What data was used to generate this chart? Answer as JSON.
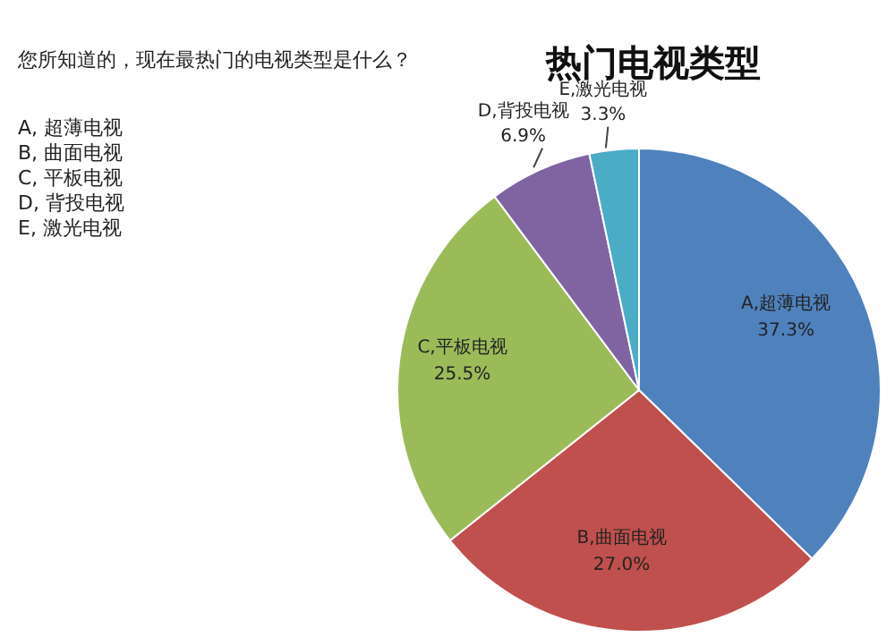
{
  "chart_data": {
    "type": "pie",
    "title": "热门电视类型",
    "annotations": [
      "您所知道的，现在最热门的电视类型是什么？",
      "A, 超薄电视",
      "B, 曲面电视",
      "C, 平板电视",
      "D, 背投电视",
      "E, 激光电视"
    ],
    "categories": [
      "A,超薄电视",
      "B,曲面电视",
      "C,平板电视",
      "D,背投电视",
      "E,激光电视"
    ],
    "values": [
      37.3,
      27.0,
      25.5,
      6.9,
      3.3
    ],
    "value_labels": [
      "37.3%",
      "27.0%",
      "25.5%",
      "6.9%",
      "3.3%"
    ],
    "colors": [
      "#4f81bd",
      "#c0504d",
      "#9bbb59",
      "#8064a2",
      "#4bacc6"
    ],
    "legend": false
  }
}
